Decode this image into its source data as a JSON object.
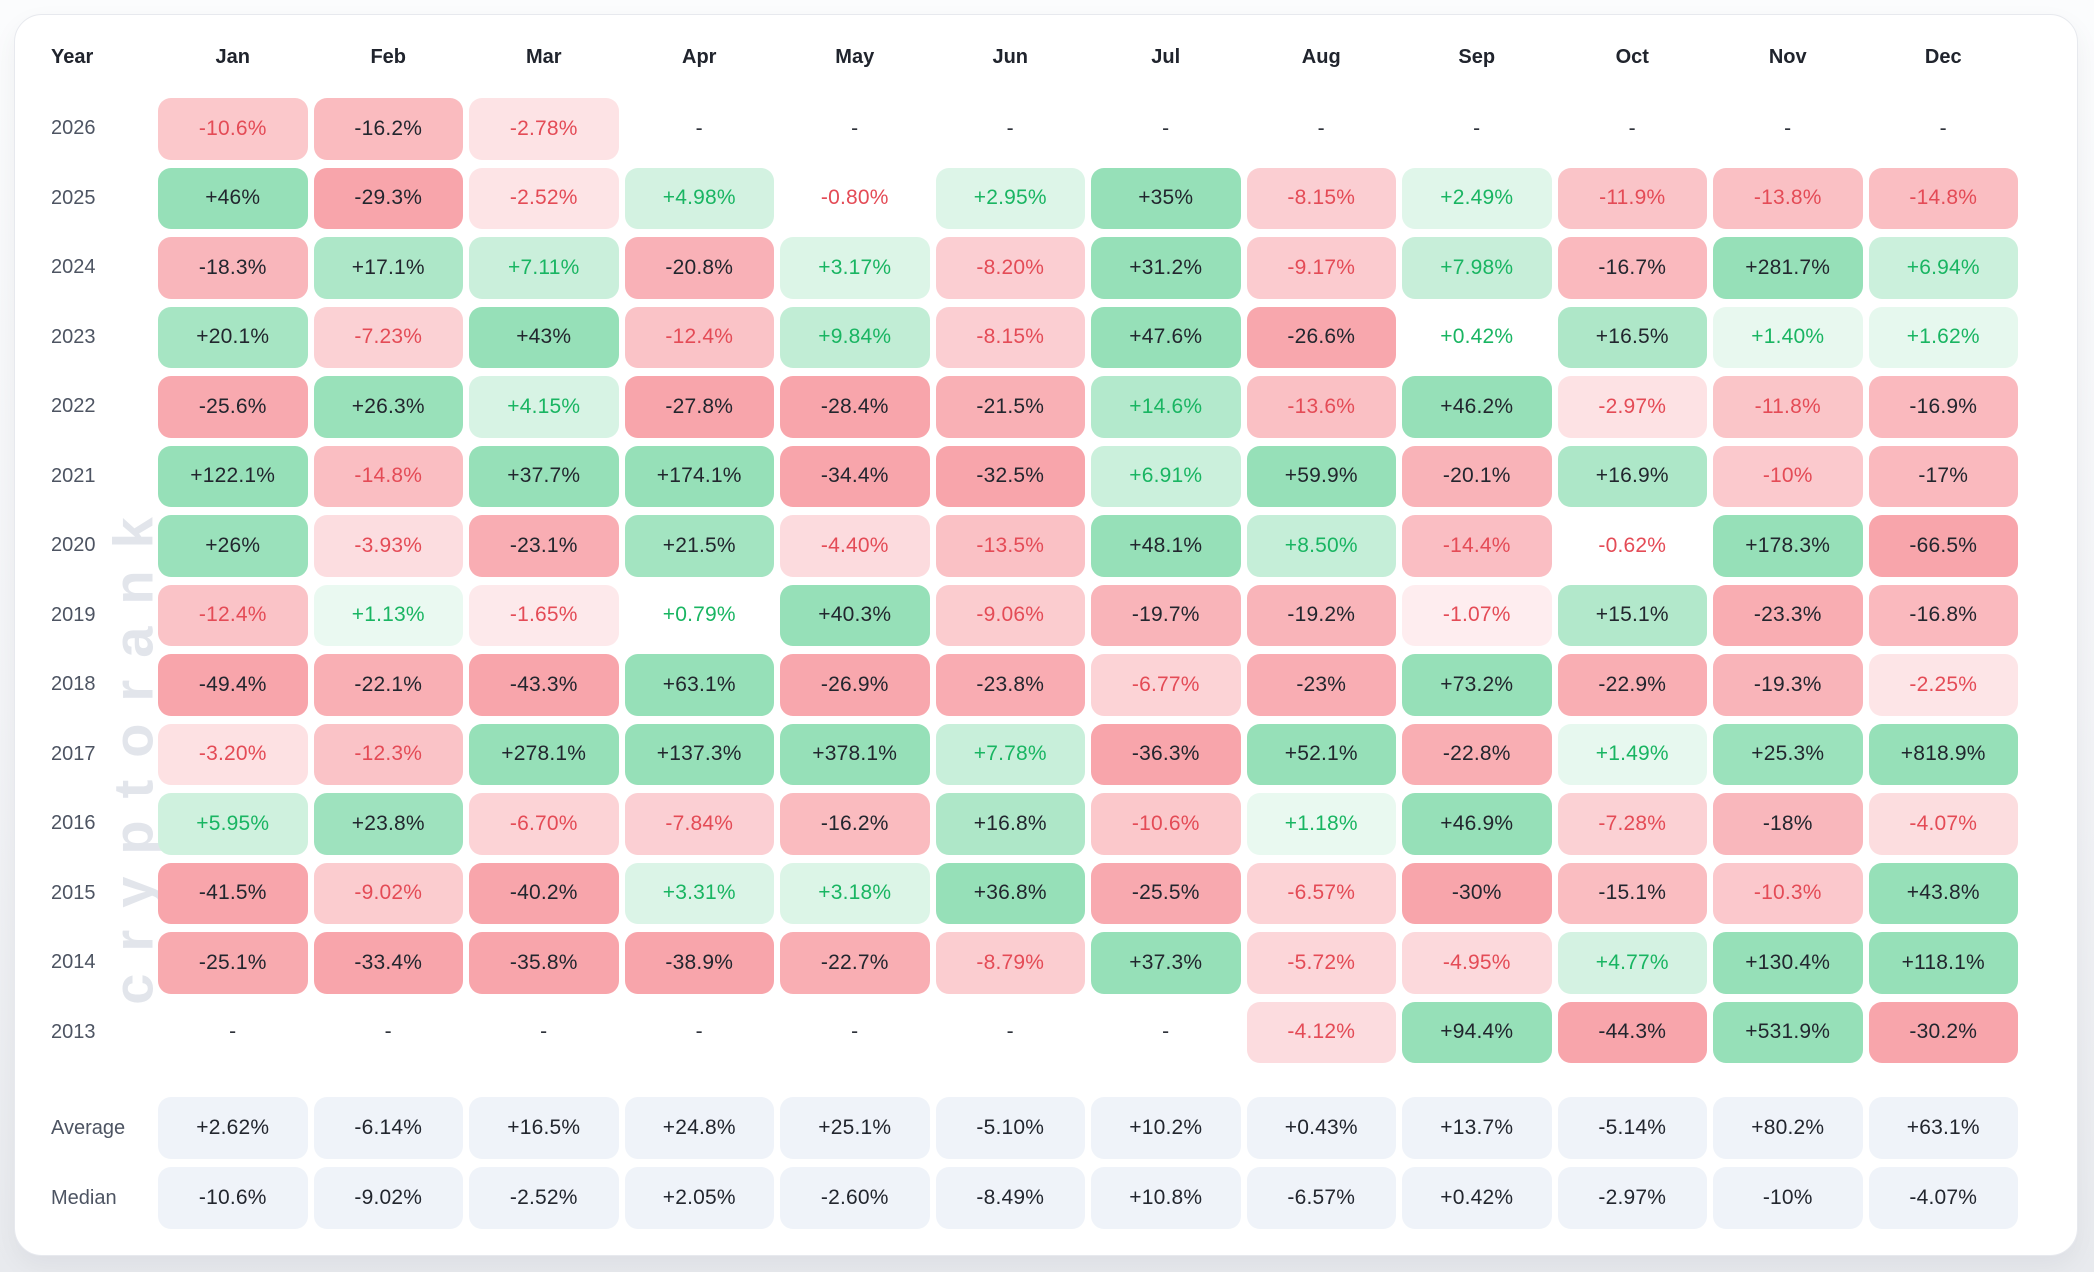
{
  "watermark": "cryptorank",
  "chart_data": {
    "type": "heatmap",
    "row_header": "Year",
    "columns": [
      "Jan",
      "Feb",
      "Mar",
      "Apr",
      "May",
      "Jun",
      "Jul",
      "Aug",
      "Sep",
      "Oct",
      "Nov",
      "Dec"
    ],
    "rows": [
      {
        "year": "2026",
        "cells": [
          "-10.6%",
          "-16.2%",
          "-2.78%",
          "-",
          "-",
          "-",
          "-",
          "-",
          "-",
          "-",
          "-",
          "-"
        ]
      },
      {
        "year": "2025",
        "cells": [
          "+46%",
          "-29.3%",
          "-2.52%",
          "+4.98%",
          "-0.80%",
          "+2.95%",
          "+35%",
          "-8.15%",
          "+2.49%",
          "-11.9%",
          "-13.8%",
          "-14.8%"
        ]
      },
      {
        "year": "2024",
        "cells": [
          "-18.3%",
          "+17.1%",
          "+7.11%",
          "-20.8%",
          "+3.17%",
          "-8.20%",
          "+31.2%",
          "-9.17%",
          "+7.98%",
          "-16.7%",
          "+281.7%",
          "+6.94%"
        ]
      },
      {
        "year": "2023",
        "cells": [
          "+20.1%",
          "-7.23%",
          "+43%",
          "-12.4%",
          "+9.84%",
          "-8.15%",
          "+47.6%",
          "-26.6%",
          "+0.42%",
          "+16.5%",
          "+1.40%",
          "+1.62%"
        ]
      },
      {
        "year": "2022",
        "cells": [
          "-25.6%",
          "+26.3%",
          "+4.15%",
          "-27.8%",
          "-28.4%",
          "-21.5%",
          "+14.6%",
          "-13.6%",
          "+46.2%",
          "-2.97%",
          "-11.8%",
          "-16.9%"
        ]
      },
      {
        "year": "2021",
        "cells": [
          "+122.1%",
          "-14.8%",
          "+37.7%",
          "+174.1%",
          "-34.4%",
          "-32.5%",
          "+6.91%",
          "+59.9%",
          "-20.1%",
          "+16.9%",
          "-10%",
          "-17%"
        ]
      },
      {
        "year": "2020",
        "cells": [
          "+26%",
          "-3.93%",
          "-23.1%",
          "+21.5%",
          "-4.40%",
          "-13.5%",
          "+48.1%",
          "+8.50%",
          "-14.4%",
          "-0.62%",
          "+178.3%",
          "-66.5%"
        ]
      },
      {
        "year": "2019",
        "cells": [
          "-12.4%",
          "+1.13%",
          "-1.65%",
          "+0.79%",
          "+40.3%",
          "-9.06%",
          "-19.7%",
          "-19.2%",
          "-1.07%",
          "+15.1%",
          "-23.3%",
          "-16.8%"
        ]
      },
      {
        "year": "2018",
        "cells": [
          "-49.4%",
          "-22.1%",
          "-43.3%",
          "+63.1%",
          "-26.9%",
          "-23.8%",
          "-6.77%",
          "-23%",
          "+73.2%",
          "-22.9%",
          "-19.3%",
          "-2.25%"
        ]
      },
      {
        "year": "2017",
        "cells": [
          "-3.20%",
          "-12.3%",
          "+278.1%",
          "+137.3%",
          "+378.1%",
          "+7.78%",
          "-36.3%",
          "+52.1%",
          "-22.8%",
          "+1.49%",
          "+25.3%",
          "+818.9%"
        ]
      },
      {
        "year": "2016",
        "cells": [
          "+5.95%",
          "+23.8%",
          "-6.70%",
          "-7.84%",
          "-16.2%",
          "+16.8%",
          "-10.6%",
          "+1.18%",
          "+46.9%",
          "-7.28%",
          "-18%",
          "-4.07%"
        ]
      },
      {
        "year": "2015",
        "cells": [
          "-41.5%",
          "-9.02%",
          "-40.2%",
          "+3.31%",
          "+3.18%",
          "+36.8%",
          "-25.5%",
          "-6.57%",
          "-30%",
          "-15.1%",
          "-10.3%",
          "+43.8%"
        ]
      },
      {
        "year": "2014",
        "cells": [
          "-25.1%",
          "-33.4%",
          "-35.8%",
          "-38.9%",
          "-22.7%",
          "-8.79%",
          "+37.3%",
          "-5.72%",
          "-4.95%",
          "+4.77%",
          "+130.4%",
          "+118.1%"
        ]
      },
      {
        "year": "2013",
        "cells": [
          "-",
          "-",
          "-",
          "-",
          "-",
          "-",
          "-",
          "-4.12%",
          "+94.4%",
          "-44.3%",
          "+531.9%",
          "-30.2%"
        ]
      }
    ],
    "summary_rows": [
      {
        "label": "Average",
        "cells": [
          "+2.62%",
          "-6.14%",
          "+16.5%",
          "+24.8%",
          "+25.1%",
          "-5.10%",
          "+10.2%",
          "+0.43%",
          "+13.7%",
          "-5.14%",
          "+80.2%",
          "+63.1%"
        ]
      },
      {
        "label": "Median",
        "cells": [
          "-10.6%",
          "-9.02%",
          "-2.52%",
          "+2.05%",
          "-2.60%",
          "-8.49%",
          "+10.8%",
          "-6.57%",
          "+0.42%",
          "-2.97%",
          "-10%",
          "-4.07%"
        ]
      }
    ],
    "colors": {
      "positive_base": "#96e0b8",
      "negative_base": "#f8a5ab",
      "positive_text": "#19b562",
      "negative_text": "#e44b56",
      "dark_text": "#22262e",
      "summary_bg": "#eff3f9"
    }
  }
}
